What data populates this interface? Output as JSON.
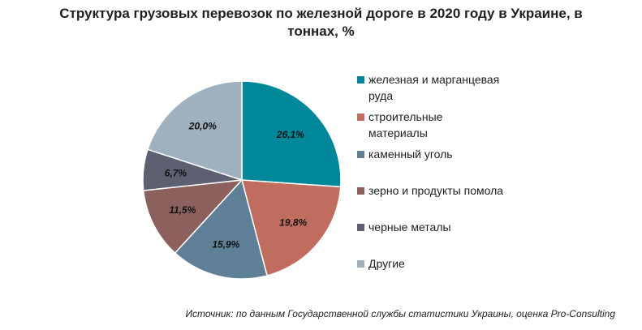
{
  "chart_data": {
    "type": "pie",
    "title_lines": [
      "Структура грузовых перевозок по железной дороге в 2020 году в Украине, в",
      "тоннах, %"
    ],
    "start_angle_deg": 0,
    "direction": "clockwise",
    "slices": [
      {
        "label": "железная и марганцевая руда",
        "legend_lines": [
          "железная и марганцевая",
          "руда"
        ],
        "value": 26.1,
        "display": "26,1%",
        "color": "#00889a"
      },
      {
        "label": "строительные материалы",
        "legend_lines": [
          "строительные",
          "материалы"
        ],
        "value": 19.8,
        "display": "19,8%",
        "color": "#c06d5f"
      },
      {
        "label": "каменный уголь",
        "legend_lines": [
          "каменный уголь"
        ],
        "value": 15.9,
        "display": "15,9%",
        "color": "#5e7f96"
      },
      {
        "label": "зерно и продукты помола",
        "legend_lines": [
          "зерно и продукты помола"
        ],
        "value": 11.5,
        "display": "11,5%",
        "color": "#8c605d"
      },
      {
        "label": "черные металы",
        "legend_lines": [
          "черные металы"
        ],
        "value": 6.7,
        "display": "6,7%",
        "color": "#5c6070"
      },
      {
        "label": "Другие",
        "legend_lines": [
          "Другие"
        ],
        "value": 20.0,
        "display": "20,0%",
        "color": "#9fb1bf"
      }
    ],
    "legend_position": "right",
    "source": "Источник: по данным Государственной службы статистики Украины, оценка Pro-Consulting"
  }
}
